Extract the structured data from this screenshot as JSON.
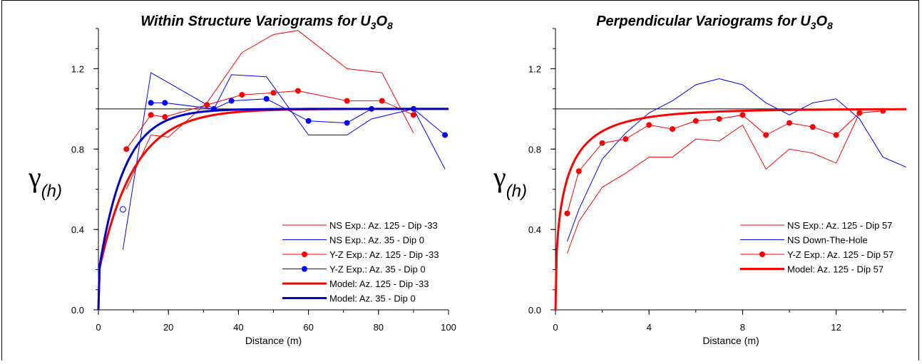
{
  "chart_data": [
    {
      "type": "line",
      "title_main": "Within Structure Variograms for U",
      "title_sub1": "3",
      "title_mid": "O",
      "title_sub2": "8",
      "xlabel": "Distance (m)",
      "ylabel_symbol": "γ",
      "ylabel_sub": "(h)",
      "xlim": [
        0,
        100
      ],
      "ylim": [
        0,
        1.4
      ],
      "xticks": [
        "0",
        "20",
        "40",
        "60",
        "80",
        "100"
      ],
      "xtick_values": [
        0,
        20,
        40,
        60,
        80,
        100
      ],
      "yticks": [
        "0.0",
        "0.4",
        "0.8",
        "1.2"
      ],
      "ytick_values": [
        0,
        0.4,
        0.8,
        1.2
      ],
      "sill": 1.0,
      "legend_position": "bottom-right",
      "series": [
        {
          "name": "NS Exp.: Az. 125 - Dip -33",
          "color": "#ff0000",
          "style": "thin",
          "x": [
            8,
            15,
            20,
            31,
            41,
            50,
            57,
            71,
            81,
            90
          ],
          "y": [
            0.6,
            0.87,
            0.86,
            1.03,
            1.28,
            1.37,
            1.39,
            1.2,
            1.18,
            0.88
          ]
        },
        {
          "name": "NS Exp.: Az. 35 - Dip 0",
          "color": "#0000ff",
          "style": "thin",
          "x": [
            7,
            15,
            19,
            33,
            38,
            48,
            60,
            71,
            78,
            90,
            99
          ],
          "y": [
            0.3,
            1.18,
            1.14,
            1.0,
            1.17,
            1.16,
            0.87,
            0.87,
            0.95,
            1.0,
            0.7
          ]
        },
        {
          "name": "Y-Z Exp.: Az. 125 - Dip -33",
          "color": "#ff0000",
          "style": "markers",
          "x": [
            8,
            15,
            19,
            31,
            41,
            50,
            57,
            71,
            81,
            90
          ],
          "y": [
            0.8,
            0.97,
            0.96,
            1.02,
            1.07,
            1.08,
            1.09,
            1.04,
            1.04,
            0.97
          ]
        },
        {
          "name": "Y-Z Exp.: Az. 35 - Dip 0",
          "color": "#0000ff",
          "style": "markers",
          "x": [
            15,
            19,
            33,
            38,
            48,
            60,
            71,
            78,
            90,
            99
          ],
          "y": [
            1.03,
            1.03,
            1.0,
            1.04,
            1.05,
            0.94,
            0.93,
            1.0,
            1.0,
            0.87
          ],
          "open_point": {
            "x": 7,
            "y": 0.5
          }
        },
        {
          "name": "Model: Az. 125 - Dip -33",
          "color": "#ff0000",
          "style": "model",
          "model": {
            "nugget": 0.18,
            "range": 30,
            "sill": 1.0
          }
        },
        {
          "name": "Model: Az. 35 - Dip 0",
          "color": "#0000cc",
          "style": "model",
          "model": {
            "nugget": 0.18,
            "range": 22,
            "sill": 1.0
          }
        }
      ]
    },
    {
      "type": "line",
      "title_main": "Perpendicular Variograms for U",
      "title_sub1": "3",
      "title_mid": "O",
      "title_sub2": "8",
      "xlabel": "Distance (m)",
      "ylabel_symbol": "γ",
      "ylabel_sub": "(h)",
      "xlim": [
        0,
        15
      ],
      "ylim": [
        0,
        1.4
      ],
      "xticks": [
        "0",
        "4",
        "8",
        "12"
      ],
      "xtick_values": [
        0,
        4,
        8,
        12
      ],
      "yticks": [
        "0.0",
        "0.4",
        "0.8",
        "1.2"
      ],
      "ytick_values": [
        0,
        0.4,
        0.8,
        1.2
      ],
      "sill": 1.0,
      "legend_position": "bottom-right",
      "series": [
        {
          "name": "NS Exp.: Az. 125 - Dip 57",
          "color": "#ff0000",
          "style": "thin",
          "x": [
            0.5,
            1,
            2,
            3,
            4,
            5,
            6,
            7,
            8,
            9,
            10,
            11,
            12,
            13,
            14
          ],
          "y": [
            0.28,
            0.44,
            0.61,
            0.68,
            0.76,
            0.76,
            0.85,
            0.84,
            0.92,
            0.7,
            0.8,
            0.78,
            0.73,
            0.98,
            0.99
          ]
        },
        {
          "name": "NS Down-The-Hole",
          "color": "#0000ff",
          "style": "thin",
          "x": [
            0.5,
            1,
            2,
            3,
            4,
            5,
            6,
            7,
            8,
            9,
            10,
            11,
            12,
            13,
            14,
            15
          ],
          "y": [
            0.34,
            0.5,
            0.75,
            0.88,
            0.98,
            1.04,
            1.12,
            1.15,
            1.12,
            1.03,
            0.97,
            1.03,
            1.05,
            0.95,
            0.76,
            0.71
          ]
        },
        {
          "name": "Y-Z Exp.: Az. 125 - Dip 57",
          "color": "#ff0000",
          "style": "markers",
          "x": [
            0.5,
            1,
            2,
            3,
            4,
            5,
            6,
            7,
            8,
            9,
            10,
            11,
            12,
            13,
            14
          ],
          "y": [
            0.48,
            0.69,
            0.83,
            0.85,
            0.92,
            0.9,
            0.94,
            0.95,
            0.97,
            0.87,
            0.93,
            0.91,
            0.87,
            0.98,
            0.99
          ]
        },
        {
          "name": "Model: Az. 125 - Dip 57",
          "color": "#ff0000",
          "style": "model",
          "model": {
            "nugget": 0.05,
            "range": 13,
            "sill": 1.0,
            "shape": "power"
          }
        }
      ]
    }
  ]
}
